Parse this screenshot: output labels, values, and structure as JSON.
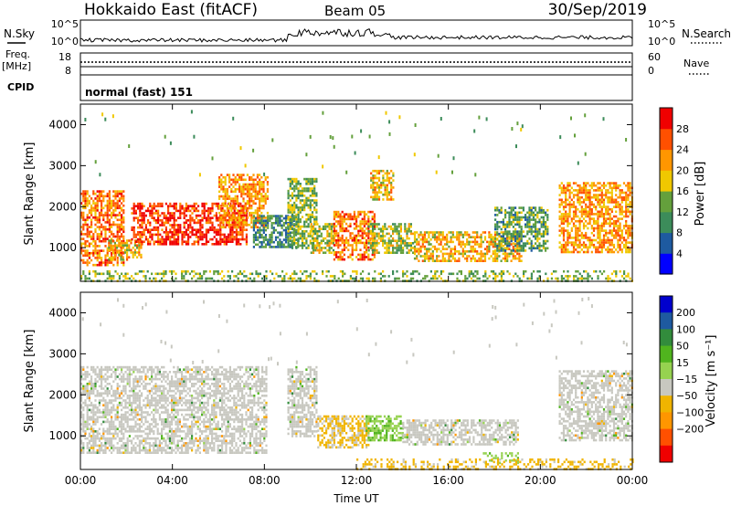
{
  "header": {
    "station": "Hokkaido East (fitACF)",
    "beam": "Beam 05",
    "date": "30/Sep/2019"
  },
  "strip": {
    "nsky_label": "N.Sky",
    "nsky_ticks": [
      "10^5",
      "10^0"
    ],
    "nsearch_label": "N.Search",
    "nsearch_ticks": [
      "10^5",
      "10^0"
    ],
    "freq_label": "Freq.",
    "freq_unit": "[MHz]",
    "freq_ticks": [
      "18",
      "8"
    ],
    "nave_label": "Nave",
    "nave_ticks": [
      "60",
      "0"
    ],
    "cpid_label": "CPID",
    "cpid_value": "normal (fast) 151"
  },
  "colors": {
    "power_scale": [
      "#0000ff",
      "#1e5aa0",
      "#3c8c5a",
      "#64a03c",
      "#f0c800",
      "#ff9600",
      "#ff5000",
      "#f00000"
    ],
    "velocity_scale": [
      "#f00000",
      "#ff5000",
      "#ff9600",
      "#f0b400",
      "#c8c8c0",
      "#96d250",
      "#50b41e",
      "#328c3c",
      "#1e5aa0",
      "#0000cd"
    ],
    "velocity_ground": "#b4b4b4"
  },
  "chart_data": [
    {
      "type": "heatmap",
      "name": "power",
      "ylabel": "Slant Range [km]",
      "xlabel": "Time UT",
      "x_ticks": [
        "00:00",
        "04:00",
        "08:00",
        "12:00",
        "16:00",
        "20:00",
        "00:00"
      ],
      "y_ticks": [
        "1000",
        "2000",
        "3000",
        "4000"
      ],
      "ylim": [
        180,
        4500
      ],
      "xlim": [
        0,
        24
      ],
      "colorbar": {
        "label": "Power [dB]",
        "ticks": [
          "4",
          "8",
          "12",
          "16",
          "20",
          "24",
          "28"
        ],
        "range": [
          0,
          32
        ]
      },
      "regions": [
        {
          "t": [
            0.0,
            1.9
          ],
          "r": [
            600,
            2400
          ],
          "mean": 24
        },
        {
          "t": [
            1.2,
            2.6
          ],
          "r": [
            700,
            1200
          ],
          "mean": 20
        },
        {
          "t": [
            2.2,
            7.2
          ],
          "r": [
            1100,
            2100
          ],
          "mean": 28
        },
        {
          "t": [
            6.0,
            8.1
          ],
          "r": [
            1500,
            2800
          ],
          "mean": 22
        },
        {
          "t": [
            7.5,
            9.5
          ],
          "r": [
            1000,
            1800
          ],
          "mean": 10
        },
        {
          "t": [
            9.0,
            10.3
          ],
          "r": [
            1000,
            2700
          ],
          "mean": 14
        },
        {
          "t": [
            10.0,
            11.0
          ],
          "r": [
            900,
            1600
          ],
          "mean": 16
        },
        {
          "t": [
            11.0,
            12.8
          ],
          "r": [
            700,
            1900
          ],
          "mean": 24
        },
        {
          "t": [
            12.5,
            14.5
          ],
          "r": [
            900,
            1600
          ],
          "mean": 16
        },
        {
          "t": [
            12.6,
            13.6
          ],
          "r": [
            2200,
            2900
          ],
          "mean": 20
        },
        {
          "t": [
            14.5,
            19.2
          ],
          "r": [
            700,
            1400
          ],
          "mean": 20
        },
        {
          "t": [
            18.0,
            20.3
          ],
          "r": [
            900,
            2000
          ],
          "mean": 12
        },
        {
          "t": [
            20.8,
            24.0
          ],
          "r": [
            900,
            2600
          ],
          "mean": 22
        },
        {
          "t": [
            0.0,
            24.0
          ],
          "r": [
            200,
            450
          ],
          "mean": 14
        }
      ]
    },
    {
      "type": "heatmap",
      "name": "velocity",
      "ylabel": "Slant Range [km]",
      "xlabel": "Time UT",
      "x_ticks": [
        "00:00",
        "04:00",
        "08:00",
        "12:00",
        "16:00",
        "20:00",
        "00:00"
      ],
      "y_ticks": [
        "1000",
        "2000",
        "3000",
        "4000"
      ],
      "ylim": [
        180,
        4500
      ],
      "xlim": [
        0,
        24
      ],
      "colorbar": {
        "label": "Velocity [m s⁻¹]",
        "ticks": [
          "200",
          "100",
          "50",
          "15",
          "−15",
          "−50",
          "−100",
          "−200"
        ],
        "range": [
          -250,
          250
        ]
      },
      "regions": [
        {
          "t": [
            0.0,
            8.1
          ],
          "r": [
            600,
            2700
          ],
          "mean": 0,
          "ground": true
        },
        {
          "t": [
            9.0,
            10.3
          ],
          "r": [
            1000,
            2700
          ],
          "mean": 0,
          "ground": true
        },
        {
          "t": [
            10.3,
            12.5
          ],
          "r": [
            700,
            1500
          ],
          "mean": -60
        },
        {
          "t": [
            12.4,
            14.0
          ],
          "r": [
            900,
            1500
          ],
          "mean": 40
        },
        {
          "t": [
            14.0,
            19.0
          ],
          "r": [
            800,
            1400
          ],
          "mean": 0,
          "ground": true
        },
        {
          "t": [
            17.5,
            19.0
          ],
          "r": [
            350,
            600
          ],
          "mean": 30
        },
        {
          "t": [
            20.8,
            24.0
          ],
          "r": [
            900,
            2600
          ],
          "mean": 0,
          "ground": true
        },
        {
          "t": [
            12.0,
            24.0
          ],
          "r": [
            200,
            450
          ],
          "mean": -70
        }
      ]
    }
  ]
}
